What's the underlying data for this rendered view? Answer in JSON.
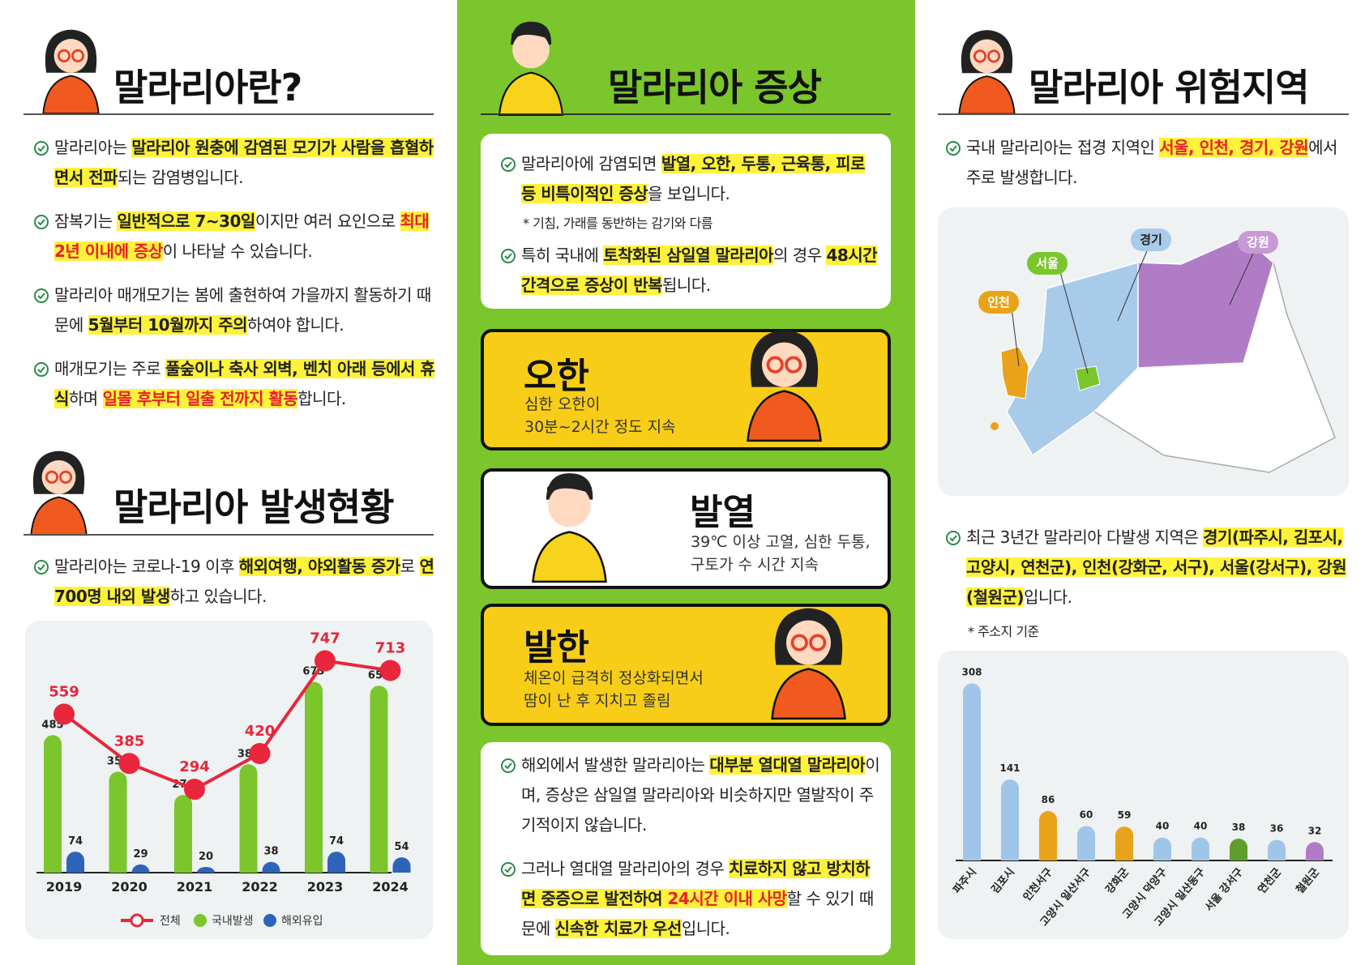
{
  "sections": {
    "what": {
      "title": "말라리아란?",
      "items": [
        [
          "말라리아는 ",
          {
            "text": "말라리아 원충에 감염된 모기가 사람을 흡혈하면서 전파",
            "mark": "highlight"
          },
          "되는 감염병입니다."
        ],
        [
          "잠복기는 ",
          {
            "text": "일반적으로 7~30일",
            "mark": "highlight"
          },
          "이지만 여러 요인으로 ",
          {
            "text": "최대 2년 이내에 증상",
            "mark": "highlight-red"
          },
          "이 나타날 수 있습니다."
        ],
        [
          "말라리아 매개모기는 봄에 출현하여 가을까지 활동하기 때문에 ",
          {
            "text": "5월부터 10월까지 주의",
            "mark": "highlight"
          },
          "하여야 합니다."
        ],
        [
          "매개모기는 주로 ",
          {
            "text": "풀숲이나 축사 외벽, 벤치 아래 등에서 휴식",
            "mark": "highlight"
          },
          "하며 ",
          {
            "text": "일몰 후부터 일출 전까지 활동",
            "mark": "highlight-red"
          },
          "합니다."
        ]
      ]
    },
    "status": {
      "title": "말라리아 발생현황",
      "items": [
        [
          "말라리아는 코로나-19 이후 ",
          {
            "text": "해외여행, 야외활동 증가",
            "mark": "highlight"
          },
          "로 ",
          {
            "text": "연 700명 내외 발생",
            "mark": "highlight"
          },
          "하고 있습니다."
        ]
      ]
    },
    "symptoms": {
      "title": "말라리아 증상",
      "items": [
        [
          "말라리아에 감염되면 ",
          {
            "text": "발열, 오한, 두통, 근육통, 피로 등 비특이적인 증상",
            "mark": "highlight"
          },
          "을 보입니다."
        ],
        [
          "특히 국내에 ",
          {
            "text": "토착화된 삼일열 말라리아",
            "mark": "highlight"
          },
          "의 경우 ",
          {
            "text": "48시간 간격으로 증상이 반복",
            "mark": "highlight"
          },
          "됩니다."
        ]
      ],
      "note": "* 기침, 가래를 동반하는 감기와 다름",
      "cards": [
        {
          "title": "오한",
          "lines": [
            "심한 오한이",
            "30분~2시간 정도 지속"
          ]
        },
        {
          "title": "발열",
          "lines": [
            "39℃ 이상 고열, 심한 두통,",
            "구토가 수 시간 지속"
          ]
        },
        {
          "title": "발한",
          "lines": [
            "체온이 급격히 정상화되면서",
            "땀이 난 후 지치고 졸림"
          ]
        }
      ],
      "items2": [
        [
          "해외에서 발생한 말라리아는 ",
          {
            "text": "대부분 열대열 말라리아",
            "mark": "highlight"
          },
          "이며, 증상은 삼일열 말라리아와 비슷하지만 열발작이 주기적이지 않습니다."
        ],
        [
          "그러나 열대열 말라리아의 경우 ",
          {
            "text": "치료하지 않고 방치하면 중증으로 발전하여 ",
            "mark": "highlight"
          },
          {
            "text": "24시간 이내 사망",
            "mark": "highlight-red"
          },
          "할 수 있기 때문에 ",
          {
            "text": "신속한 치료가 우선",
            "mark": "highlight"
          },
          "입니다."
        ]
      ]
    },
    "regions": {
      "title": "말라리아 위험지역",
      "items": [
        [
          "국내 말라리아는 접경 지역인 ",
          {
            "text": "서울, 인천, 경기, 강원",
            "mark": "highlight-red"
          },
          "에서 주로 발생합니다."
        ]
      ],
      "map_labels": [
        "인천",
        "서울",
        "경기",
        "강원"
      ],
      "items2": [
        [
          "최근 3년간 말라리아 다발생 지역은 ",
          {
            "text": "경기(파주시, 김포시, 고양시, 연천군), 인천(강화군, 서구), 서울(강서구), 강원(철원군)",
            "mark": "highlight"
          },
          "입니다."
        ]
      ],
      "note": "* 주소지 기준"
    }
  },
  "chart_data": [
    {
      "type": "bar-line",
      "categories": [
        "2019",
        "2020",
        "2021",
        "2022",
        "2023",
        "2024"
      ],
      "series": [
        {
          "name": "전체",
          "color": "#e8263c",
          "type": "line",
          "values": [
            559,
            385,
            294,
            420,
            747,
            713
          ]
        },
        {
          "name": "국내발생",
          "color": "#7ac62c",
          "type": "bar",
          "values": [
            485,
            356,
            274,
            382,
            673,
            659
          ]
        },
        {
          "name": "해외유입",
          "color": "#2e64b8",
          "type": "bar",
          "values": [
            74,
            29,
            20,
            38,
            74,
            54
          ]
        }
      ],
      "ylim": [
        0,
        800
      ]
    },
    {
      "type": "bar",
      "categories": [
        "파주시",
        "김포시",
        "인천서구",
        "고양시 일산서구",
        "강화군",
        "고양시 덕양구",
        "고양시 일산동구",
        "서울 강서구",
        "연천군",
        "철원군"
      ],
      "values": [
        308,
        141,
        86,
        60,
        59,
        40,
        40,
        38,
        36,
        32
      ],
      "colors": [
        "#9fc6e8",
        "#9fc6e8",
        "#e8a31a",
        "#9fc6e8",
        "#e8a31a",
        "#9fc6e8",
        "#9fc6e8",
        "#5e9e2e",
        "#9fc6e8",
        "#b07cc6"
      ],
      "ylim": [
        0,
        320
      ]
    }
  ]
}
